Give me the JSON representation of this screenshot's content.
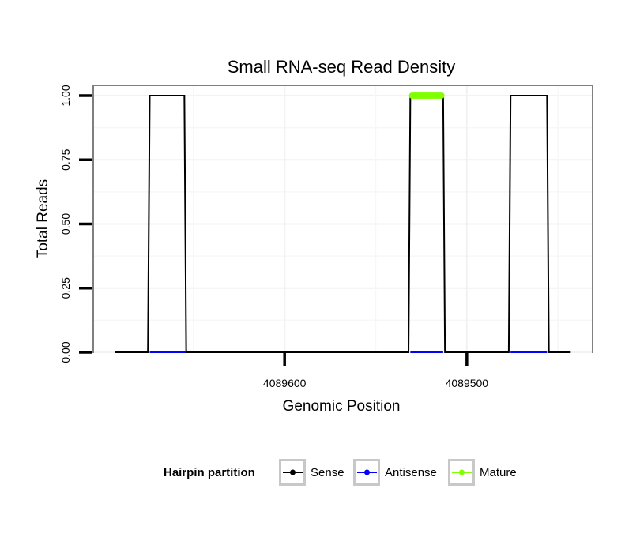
{
  "chart_data": {
    "type": "line",
    "title": "Small RNA-seq Read Density",
    "xlabel": "Genomic Position",
    "ylabel": "Total Reads",
    "ylim": [
      0,
      1.04
    ],
    "xlim": [
      4089705,
      4089431
    ],
    "x_reversed": true,
    "x_ticks": [
      4089600,
      4089500
    ],
    "x_tick_labels": [
      "4089600",
      "4089500"
    ],
    "y_ticks": [
      0,
      0.25,
      0.5,
      0.75,
      1.0
    ],
    "y_tick_labels": [
      "0.00",
      "0.25",
      "0.50",
      "0.75",
      "1.00"
    ],
    "grid": true,
    "legend": {
      "position": "bottom",
      "title": "Hairpin partition",
      "entries": [
        {
          "label": "Sense",
          "color": "#000000"
        },
        {
          "label": "Antisense",
          "color": "#0000ff"
        },
        {
          "label": "Mature",
          "color": "#7fff00"
        }
      ]
    },
    "series": [
      {
        "name": "Sense",
        "color": "#000000",
        "x": [
          4089693,
          4089675,
          4089674,
          4089655,
          4089654,
          4089532,
          4089531,
          4089513,
          4089512,
          4089477,
          4089476,
          4089456,
          4089455,
          4089443
        ],
        "y": [
          0,
          0,
          1,
          1,
          0,
          0,
          1,
          1,
          0,
          0,
          1,
          1,
          0,
          0
        ]
      },
      {
        "name": "Antisense",
        "color": "#0000ff",
        "segments": [
          {
            "x": [
              4089674,
              4089654
            ],
            "y": [
              0,
              0
            ]
          },
          {
            "x": [
              4089531,
              4089513
            ],
            "y": [
              0,
              0
            ]
          },
          {
            "x": [
              4089476,
              4089456
            ],
            "y": [
              0,
              0
            ]
          }
        ]
      },
      {
        "name": "Mature",
        "color": "#7fff00",
        "x": [
          4089530,
          4089514
        ],
        "y": [
          1,
          1
        ]
      }
    ]
  }
}
